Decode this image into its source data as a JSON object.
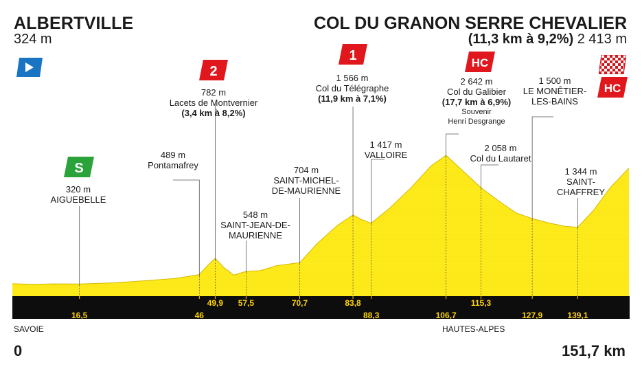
{
  "start": {
    "name": "ALBERTVILLE",
    "altitude": "324 m"
  },
  "finish": {
    "name": "COL DU GRANON SERRE CHEVALIER",
    "climb": "(11,3 km à 9,2%)",
    "altitude": "2 413 m"
  },
  "chart_data": {
    "type": "area",
    "xlabel": "",
    "ylabel": "",
    "xlim": [
      0,
      151.7
    ],
    "x_unit": "km",
    "start_label": "0",
    "end_label": "151,7 km",
    "profile": [
      {
        "km": 0,
        "alt": 324
      },
      {
        "km": 5,
        "alt": 315
      },
      {
        "km": 10,
        "alt": 322
      },
      {
        "km": 16.5,
        "alt": 320
      },
      {
        "km": 25,
        "alt": 340
      },
      {
        "km": 33,
        "alt": 380
      },
      {
        "km": 40,
        "alt": 420
      },
      {
        "km": 46,
        "alt": 489
      },
      {
        "km": 48,
        "alt": 650
      },
      {
        "km": 49.9,
        "alt": 782
      },
      {
        "km": 52,
        "alt": 620
      },
      {
        "km": 54.5,
        "alt": 480
      },
      {
        "km": 57.5,
        "alt": 548
      },
      {
        "km": 61,
        "alt": 560
      },
      {
        "km": 65,
        "alt": 650
      },
      {
        "km": 70.7,
        "alt": 704
      },
      {
        "km": 75,
        "alt": 1050
      },
      {
        "km": 80,
        "alt": 1380
      },
      {
        "km": 83.8,
        "alt": 1566
      },
      {
        "km": 86,
        "alt": 1480
      },
      {
        "km": 88.3,
        "alt": 1417
      },
      {
        "km": 93,
        "alt": 1700
      },
      {
        "km": 98,
        "alt": 2050
      },
      {
        "km": 103,
        "alt": 2450
      },
      {
        "km": 106.7,
        "alt": 2642
      },
      {
        "km": 111,
        "alt": 2350
      },
      {
        "km": 115.3,
        "alt": 2058
      },
      {
        "km": 120,
        "alt": 1800
      },
      {
        "km": 124,
        "alt": 1600
      },
      {
        "km": 127.9,
        "alt": 1500
      },
      {
        "km": 132,
        "alt": 1420
      },
      {
        "km": 136,
        "alt": 1360
      },
      {
        "km": 139.1,
        "alt": 1344
      },
      {
        "km": 143,
        "alt": 1650
      },
      {
        "km": 147,
        "alt": 2050
      },
      {
        "km": 151.7,
        "alt": 2413
      }
    ],
    "km_markers": [
      {
        "km": 16.5,
        "label": "16,5",
        "row": 1
      },
      {
        "km": 46,
        "label": "46",
        "row": 1
      },
      {
        "km": 49.9,
        "label": "49,9",
        "row": 0
      },
      {
        "km": 57.5,
        "label": "57,5",
        "row": 0
      },
      {
        "km": 70.7,
        "label": "70,7",
        "row": 0
      },
      {
        "km": 83.8,
        "label": "83,8",
        "row": 0
      },
      {
        "km": 88.3,
        "label": "88,3",
        "row": 1
      },
      {
        "km": 106.7,
        "label": "106,7",
        "row": 1
      },
      {
        "km": 115.3,
        "label": "115,3",
        "row": 0
      },
      {
        "km": 127.9,
        "label": "127,9",
        "row": 1
      },
      {
        "km": 139.1,
        "label": "139,1",
        "row": 1
      }
    ],
    "regions": [
      "SAVOIE",
      "HAUTES-ALPES"
    ]
  },
  "points": {
    "aiguebelle": [
      "320 m",
      "AIGUEBELLE"
    ],
    "pontamafrey": [
      "489 m",
      "Pontamafrey"
    ],
    "montvernier": [
      "782 m",
      "Lacets de Montvernier",
      "(3,4 km à 8,2%)"
    ],
    "saint_jean": [
      "548 m",
      "SAINT-JEAN-DE-",
      "MAURIENNE"
    ],
    "saint_michel": [
      "704 m",
      "SAINT-MICHEL-",
      "DE-MAURIENNE"
    ],
    "telegraphe": [
      "1 566 m",
      "Col du Télégraphe",
      "(11,9 km à 7,1%)"
    ],
    "valloire": [
      "1 417 m",
      "VALLOIRE"
    ],
    "galibier": [
      "2 642 m",
      "Col du Galibier",
      "(17,7 km à 6,9%)",
      "Souvenir",
      "Henri Desgrange"
    ],
    "lautaret": [
      "2 058 m",
      "Col du Lautaret"
    ],
    "monetier": [
      "1 500 m",
      "LE MONÊTIER-",
      "LES-BAINS"
    ],
    "chaffrey": [
      "1 344 m",
      "SAINT-",
      "CHAFFREY"
    ]
  },
  "badges": {
    "sprint": "S",
    "cat2": "2",
    "cat1": "1",
    "hc_galibier": "HC",
    "hc_finish": "HC"
  },
  "colors": {
    "profile": "#ffec1f",
    "profile_line": "#d4b800",
    "band": "#0d0d0d",
    "km_text": "#ffd400",
    "start_flag": "#1a74c4",
    "climb_badge": "#e0181d",
    "sprint_badge": "#29a33a"
  }
}
